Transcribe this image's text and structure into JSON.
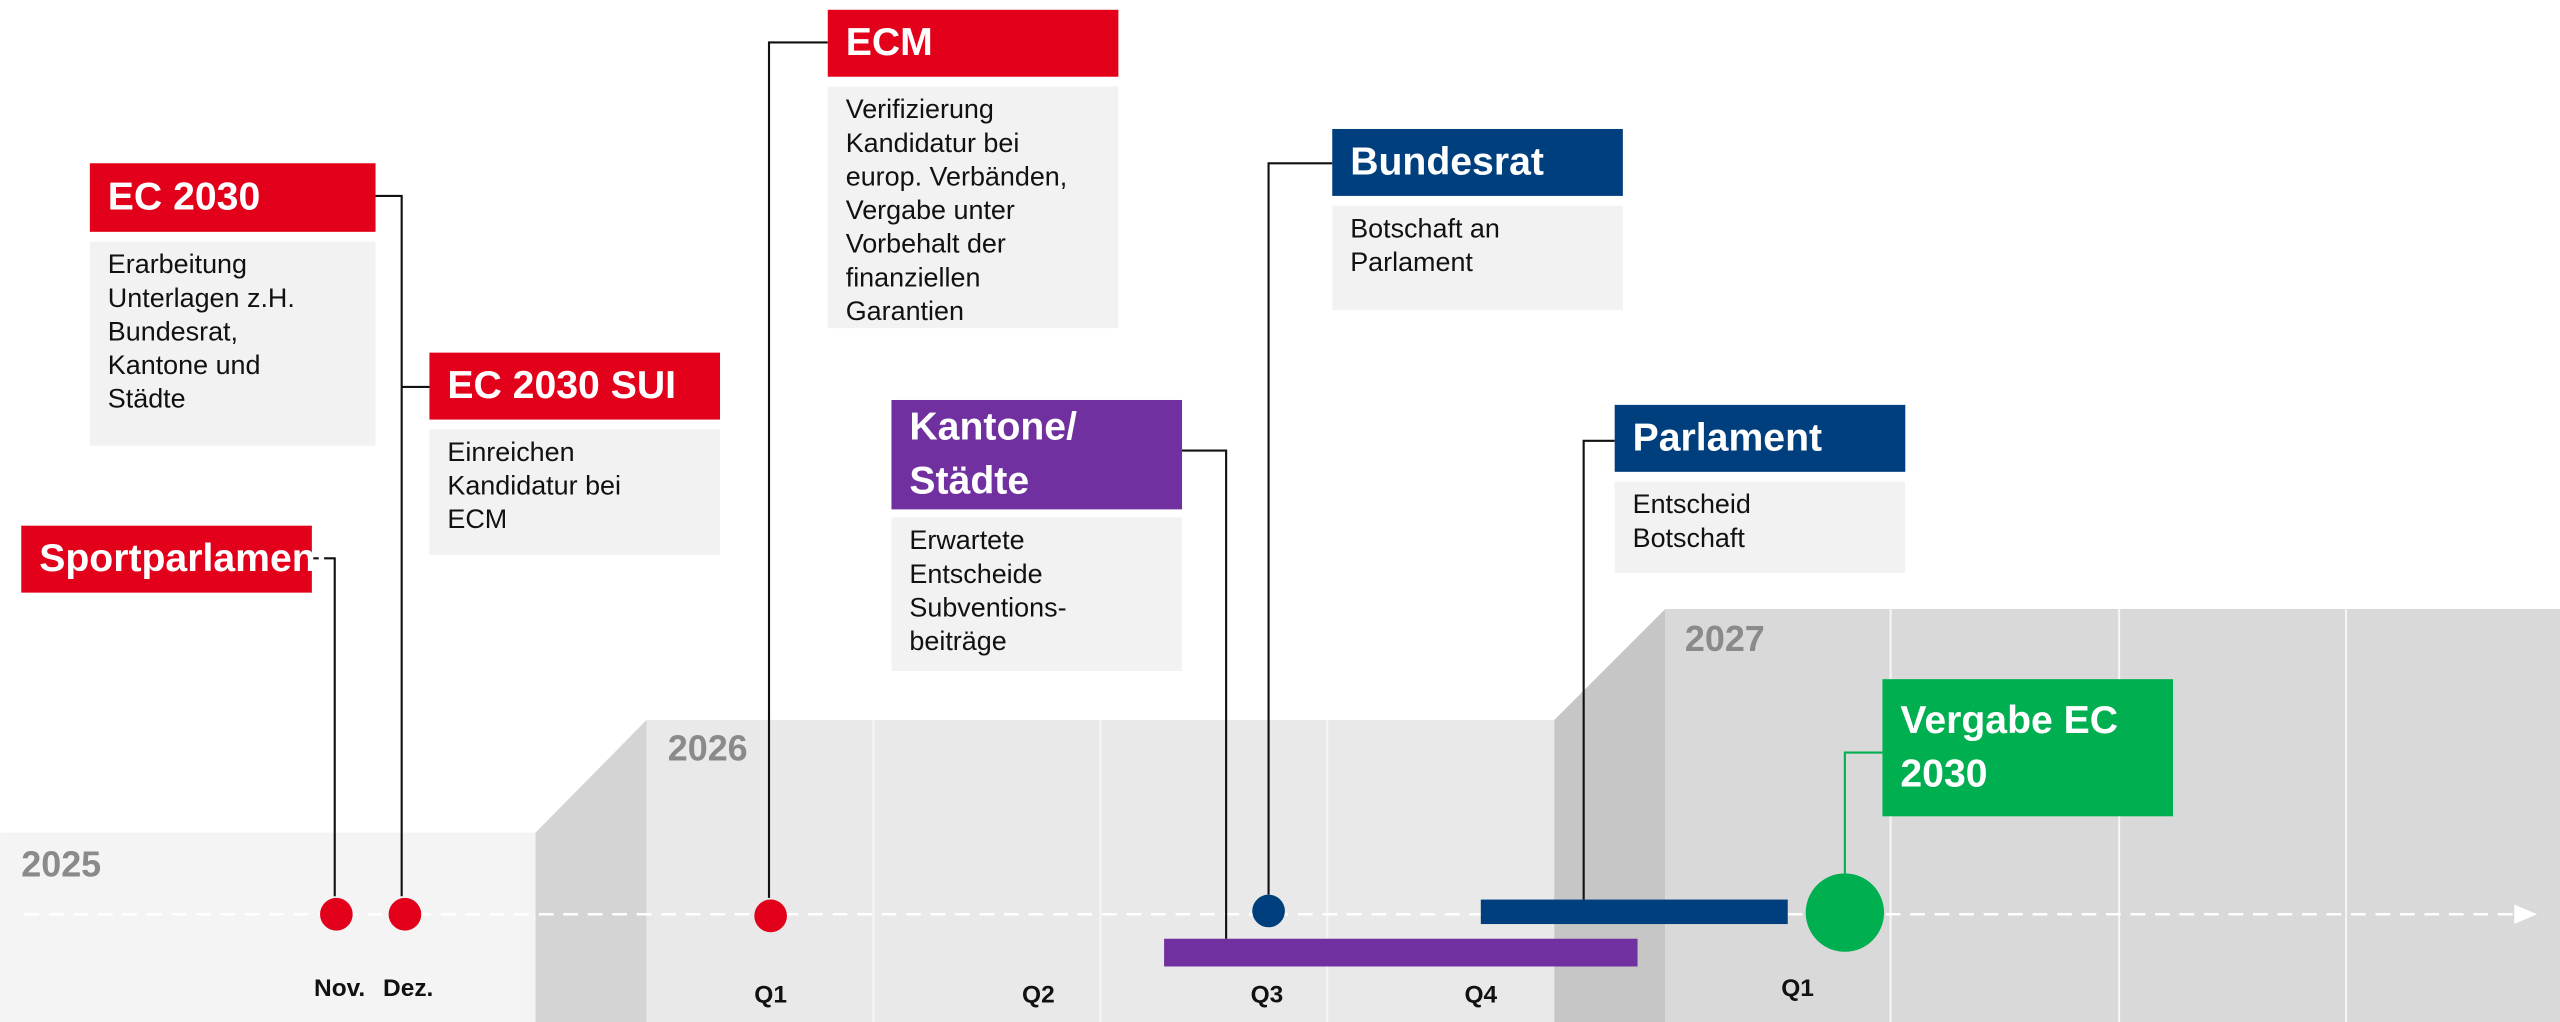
{
  "years": [
    "2025",
    "2026",
    "2027"
  ],
  "periods": [
    "Nov.",
    "Dez.",
    "Q1",
    "Q2",
    "Q3",
    "Q4",
    "Q1"
  ],
  "events": [
    {
      "title": [
        "Sportparlament"
      ],
      "body": []
    },
    {
      "title": [
        "EC 2030"
      ],
      "body": [
        "Erarbeitung",
        "Unterlagen z.H.",
        "Bundesrat,",
        "Kantone und",
        "Städte"
      ]
    },
    {
      "title": [
        "EC 2030 SUI"
      ],
      "body": [
        "Einreichen",
        "Kandidatur bei",
        "ECM"
      ]
    },
    {
      "title": [
        "ECM"
      ],
      "body": [
        "Verifizierung",
        "Kandidatur bei",
        "europ. Verbänden,",
        "Vergabe unter",
        "Vorbehalt der",
        "finanziellen",
        "Garantien"
      ]
    },
    {
      "title": [
        "Kantone/",
        "Städte"
      ],
      "body": [
        "Erwartete",
        "Entscheide",
        "Subventions-",
        "beiträge"
      ]
    },
    {
      "title": [
        "Bundesrat"
      ],
      "body": [
        "Botschaft an",
        "Parlament"
      ]
    },
    {
      "title": [
        "Parlament"
      ],
      "body": [
        "Entscheid",
        "Botschaft"
      ]
    },
    {
      "title": [
        "Vergabe EC",
        "2030"
      ],
      "body": []
    }
  ]
}
